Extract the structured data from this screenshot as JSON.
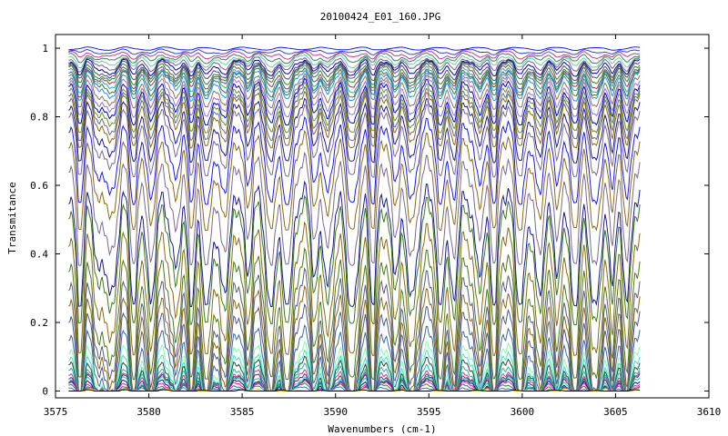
{
  "chart_data": {
    "type": "line",
    "title": "20100424_E01_160.JPG",
    "xlabel": "Wavenumbers (cm-1)",
    "ylabel": "Transmitance",
    "xlim": [
      3575,
      3610
    ],
    "ylim": [
      -0.02,
      1.04
    ],
    "x_ticks": [
      "3575",
      "3580",
      "3585",
      "3590",
      "3595",
      "3600",
      "3605",
      "3610"
    ],
    "x_tick_values": [
      3575,
      3580,
      3585,
      3590,
      3595,
      3600,
      3605,
      3610
    ],
    "y_ticks": [
      "0",
      "0.2",
      "0.4",
      "0.6",
      "0.8",
      "1"
    ],
    "y_tick_values": [
      0,
      0.2,
      0.4,
      0.6,
      0.8,
      1.0
    ],
    "grid": false,
    "legend": "none",
    "x_range_of_data": [
      3575.7,
      3606.3
    ],
    "absorption_line_centers": [
      3576.3,
      3577.3,
      3578.0,
      3579.2,
      3580.1,
      3581.4,
      3582.3,
      3583.1,
      3584.0,
      3585.3,
      3586.5,
      3587.4,
      3588.9,
      3589.6,
      3590.9,
      3592.0,
      3593.2,
      3594.1,
      3595.6,
      3596.3,
      3597.7,
      3598.5,
      3599.9,
      3600.9,
      3601.9,
      3602.8,
      3603.9,
      3604.8,
      3605.6
    ],
    "series_baselines": [
      1.0,
      0.995,
      0.99,
      0.985,
      0.98,
      0.975,
      0.97,
      0.965,
      0.96,
      0.955,
      0.95,
      0.945,
      0.94,
      0.93,
      0.92,
      0.91,
      0.9,
      0.89,
      0.88,
      0.86,
      0.84,
      0.8,
      0.76,
      0.7,
      0.62,
      0.58,
      0.5,
      0.42,
      0.36,
      0.31,
      0.26,
      0.2,
      0.15,
      0.12,
      0.1,
      0.08,
      0.065,
      0.055,
      0.045,
      0.035,
      0.028,
      0.02,
      0.012,
      0.005,
      0.0
    ],
    "series_colors": [
      "#1a1aff",
      "#3344cc",
      "#cc3399",
      "#2e8b57",
      "#66cdaa",
      "#7b5a8a",
      "#0000aa",
      "#4a4a7a",
      "#228b22",
      "#993366",
      "#20b2aa",
      "#556b2f",
      "#1e90ff",
      "#8b7355",
      "#9370db",
      "#0000cd",
      "#6b8e23",
      "#5f6a9a",
      "#8b6914",
      "#1a1a8c",
      "#7a6a8a",
      "#1a1aee",
      "#8b6914",
      "#7a6a8a",
      "#1a1a8c",
      "#3a7a1a",
      "#8b6914",
      "#4a7a1a",
      "#5a5a7a",
      "#8b6914",
      "#4a5a8a",
      "#3a6a9a",
      "#7fffaa",
      "#40e0d0",
      "#2e4a2e",
      "#20b2aa",
      "#cc3399",
      "#3a3a6a",
      "#00ced1",
      "#1a1a1a",
      "#ff00ff",
      "#228b22",
      "#4169e1",
      "#ffd700",
      "#000000"
    ]
  }
}
